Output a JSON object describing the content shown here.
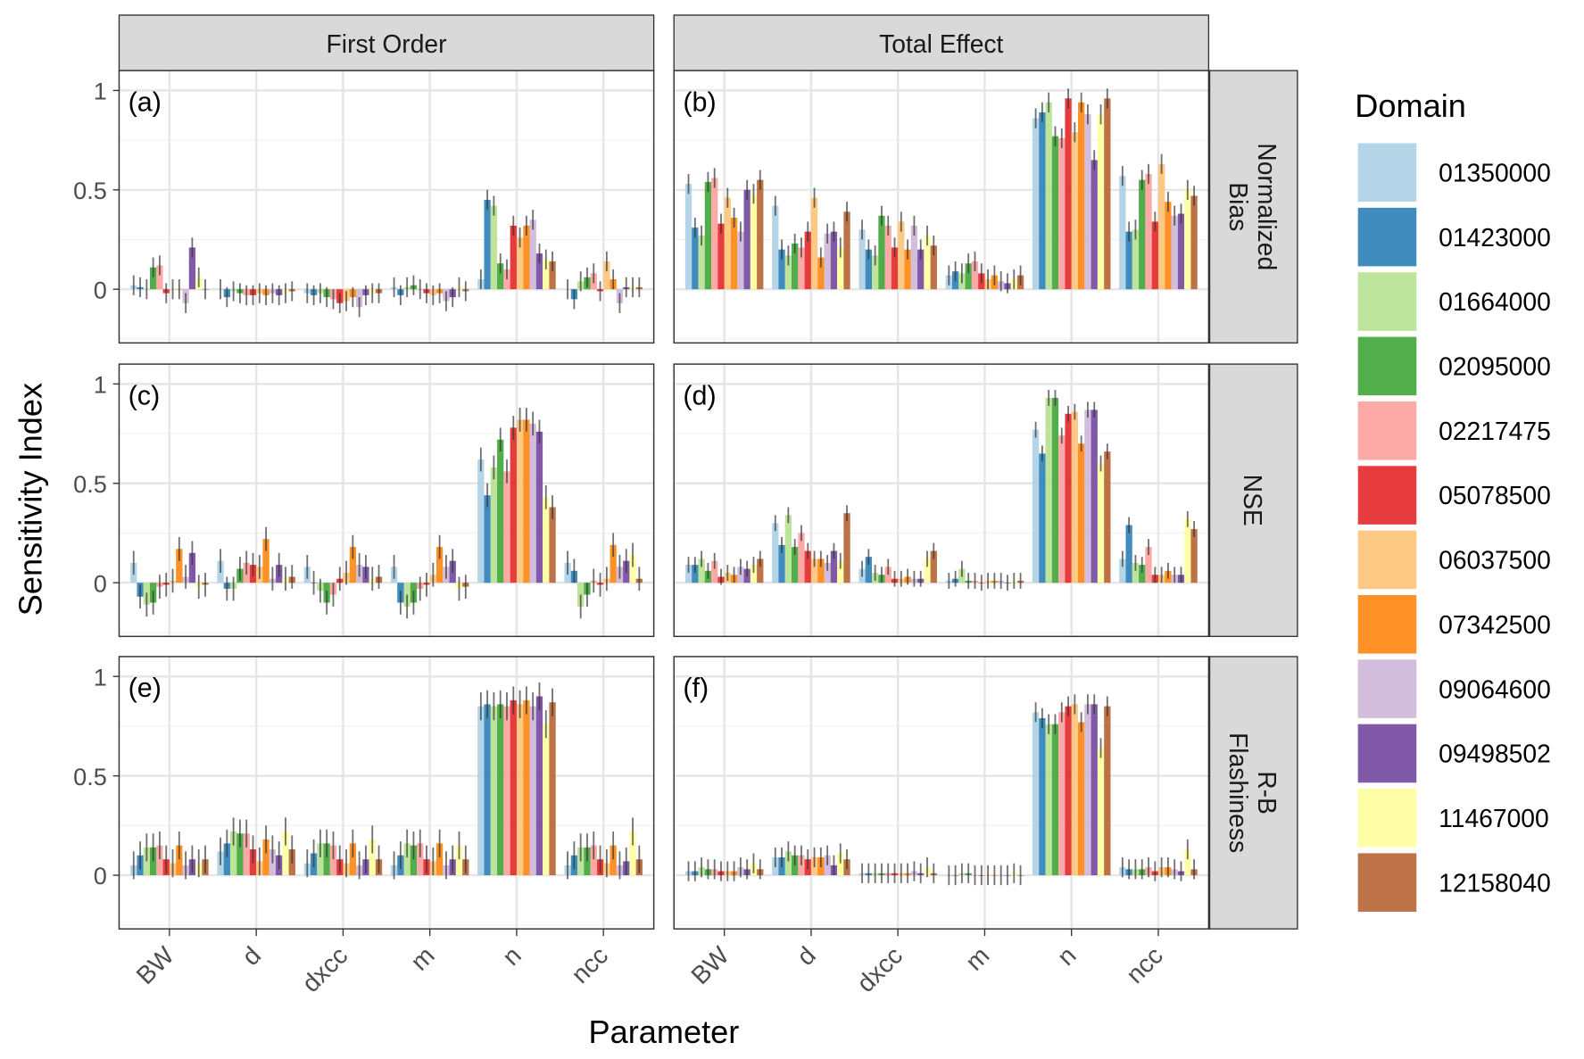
{
  "chart_data": {
    "type": "bar",
    "xlabel": "Parameter",
    "ylabel": "Sensitivity Index",
    "ylim": [
      -0.27,
      1.1
    ],
    "yticks": [
      0,
      0.5,
      1
    ],
    "ytick_labels": [
      "0",
      "0.5",
      "1"
    ],
    "grid": true,
    "legend": {
      "title": "Domain",
      "placement": "right"
    },
    "categories": [
      "BW",
      "d",
      "dxcc",
      "m",
      "n",
      "ncc"
    ],
    "column_strips": [
      "First Order",
      "Total Effect"
    ],
    "row_strips": [
      "Normalized\nBias",
      "NSE",
      "R-B\nFlashiness"
    ],
    "domains": [
      "01350000",
      "01423000",
      "01664000",
      "02095000",
      "02217475",
      "05078500",
      "06037500",
      "07342500",
      "09064600",
      "09498502",
      "11467000",
      "12158040"
    ],
    "colors": [
      "#A6CEE3",
      "#1F78B4",
      "#B2DF8A",
      "#33A02C",
      "#FB9A99",
      "#E31A1C",
      "#FDBF6F",
      "#FF7F00",
      "#CAB2D6",
      "#6A3D9A",
      "#FFFF99",
      "#B15928"
    ],
    "panels": [
      {
        "label": "(a)",
        "row": 0,
        "col": 0,
        "error_halfwidth": 0.05,
        "values": [
          [
            0.02,
            0.01,
            0.0,
            0.11,
            0.12,
            -0.02,
            0.0,
            0.0,
            -0.07,
            0.21,
            0.06,
            0.0
          ],
          [
            0.0,
            -0.04,
            -0.01,
            -0.02,
            -0.03,
            -0.03,
            -0.02,
            -0.03,
            -0.02,
            -0.03,
            -0.02,
            -0.01
          ],
          [
            -0.02,
            -0.03,
            -0.02,
            -0.04,
            -0.05,
            -0.07,
            -0.06,
            -0.04,
            -0.09,
            -0.03,
            -0.02,
            -0.02
          ],
          [
            0.01,
            -0.03,
            0.01,
            0.02,
            0.0,
            -0.02,
            -0.03,
            -0.02,
            -0.06,
            -0.04,
            0.01,
            -0.01
          ],
          [
            0.05,
            0.45,
            0.42,
            0.13,
            0.1,
            0.32,
            0.26,
            0.32,
            0.35,
            0.18,
            0.15,
            0.14
          ],
          [
            0.0,
            -0.05,
            0.04,
            0.06,
            0.08,
            -0.01,
            0.14,
            0.05,
            -0.07,
            0.01,
            0.01,
            0.01
          ]
        ]
      },
      {
        "label": "(b)",
        "row": 0,
        "col": 1,
        "error_halfwidth": 0.05,
        "values": [
          [
            0.53,
            0.31,
            0.27,
            0.54,
            0.56,
            0.33,
            0.46,
            0.36,
            0.29,
            0.5,
            0.48,
            0.55
          ],
          [
            0.42,
            0.2,
            0.17,
            0.23,
            0.21,
            0.29,
            0.46,
            0.16,
            0.28,
            0.29,
            0.21,
            0.39
          ],
          [
            0.3,
            0.2,
            0.17,
            0.37,
            0.32,
            0.21,
            0.34,
            0.2,
            0.32,
            0.2,
            0.27,
            0.22
          ],
          [
            0.07,
            0.09,
            0.08,
            0.13,
            0.14,
            0.08,
            0.05,
            0.07,
            0.04,
            0.03,
            0.05,
            0.07
          ],
          [
            0.86,
            0.89,
            0.94,
            0.77,
            0.76,
            0.96,
            0.79,
            0.94,
            0.88,
            0.65,
            0.88,
            0.96
          ],
          [
            0.57,
            0.29,
            0.3,
            0.55,
            0.58,
            0.34,
            0.63,
            0.44,
            0.37,
            0.38,
            0.5,
            0.47
          ]
        ]
      },
      {
        "label": "(c)",
        "row": 1,
        "col": 0,
        "error_halfwidth": 0.06,
        "values": [
          [
            0.1,
            -0.07,
            -0.11,
            -0.1,
            -0.02,
            -0.01,
            0.01,
            0.17,
            0.03,
            0.15,
            -0.02,
            -0.01
          ],
          [
            0.11,
            -0.03,
            -0.03,
            0.07,
            0.1,
            0.09,
            0.08,
            0.22,
            0.02,
            0.09,
            0.02,
            0.03
          ],
          [
            0.08,
            0.0,
            -0.04,
            -0.1,
            -0.06,
            0.02,
            0.05,
            0.18,
            0.09,
            0.08,
            0.02,
            0.03
          ],
          [
            0.08,
            -0.1,
            -0.12,
            -0.1,
            -0.03,
            -0.01,
            0.04,
            0.18,
            0.08,
            0.11,
            -0.03,
            -0.02
          ],
          [
            0.62,
            0.44,
            0.58,
            0.72,
            0.56,
            0.78,
            0.82,
            0.82,
            0.8,
            0.76,
            0.43,
            0.38
          ],
          [
            0.1,
            0.06,
            -0.12,
            -0.06,
            0.01,
            -0.01,
            0.02,
            0.19,
            0.08,
            0.11,
            0.14,
            0.02
          ]
        ]
      },
      {
        "label": "(d)",
        "row": 1,
        "col": 1,
        "error_halfwidth": 0.04,
        "values": [
          [
            0.09,
            0.09,
            0.12,
            0.06,
            0.11,
            0.03,
            0.05,
            0.04,
            0.08,
            0.07,
            0.09,
            0.12
          ],
          [
            0.3,
            0.19,
            0.34,
            0.18,
            0.25,
            0.16,
            0.12,
            0.12,
            0.1,
            0.16,
            0.11,
            0.35
          ],
          [
            0.07,
            0.13,
            0.05,
            0.04,
            0.08,
            0.02,
            0.02,
            0.03,
            0.02,
            0.02,
            0.12,
            0.16
          ],
          [
            0.01,
            0.02,
            0.07,
            0.01,
            0.01,
            0.0,
            0.01,
            0.01,
            0.01,
            0.0,
            0.01,
            0.01
          ],
          [
            0.77,
            0.65,
            0.93,
            0.93,
            0.74,
            0.85,
            0.86,
            0.7,
            0.87,
            0.87,
            0.6,
            0.66
          ],
          [
            0.12,
            0.29,
            0.1,
            0.09,
            0.18,
            0.04,
            0.04,
            0.06,
            0.04,
            0.04,
            0.32,
            0.27
          ]
        ]
      },
      {
        "label": "(e)",
        "row": 2,
        "col": 0,
        "error_halfwidth": 0.07,
        "values": [
          [
            0.05,
            0.1,
            0.14,
            0.14,
            0.15,
            0.08,
            0.06,
            0.15,
            0.05,
            0.08,
            0.06,
            0.08
          ],
          [
            0.12,
            0.16,
            0.22,
            0.21,
            0.21,
            0.13,
            0.07,
            0.18,
            0.13,
            0.1,
            0.22,
            0.13
          ],
          [
            0.06,
            0.11,
            0.16,
            0.16,
            0.15,
            0.08,
            0.06,
            0.16,
            0.05,
            0.08,
            0.18,
            0.08
          ],
          [
            0.05,
            0.1,
            0.16,
            0.15,
            0.16,
            0.08,
            0.07,
            0.16,
            0.05,
            0.08,
            0.15,
            0.08
          ],
          [
            0.85,
            0.86,
            0.85,
            0.86,
            0.85,
            0.88,
            0.86,
            0.88,
            0.85,
            0.9,
            0.76,
            0.87
          ],
          [
            0.05,
            0.1,
            0.14,
            0.14,
            0.15,
            0.08,
            0.06,
            0.15,
            0.05,
            0.07,
            0.22,
            0.08
          ]
        ]
      },
      {
        "label": "(f)",
        "row": 2,
        "col": 1,
        "error_halfwidth": 0.05,
        "values": [
          [
            0.02,
            0.02,
            0.04,
            0.03,
            0.03,
            0.02,
            0.02,
            0.02,
            0.04,
            0.03,
            0.06,
            0.03
          ],
          [
            0.09,
            0.09,
            0.12,
            0.1,
            0.1,
            0.08,
            0.09,
            0.09,
            0.1,
            0.05,
            0.11,
            0.08
          ],
          [
            0.01,
            0.01,
            0.01,
            0.01,
            0.01,
            0.01,
            0.01,
            0.01,
            0.02,
            0.01,
            0.04,
            0.01
          ],
          [
            0.0,
            0.0,
            0.01,
            0.01,
            0.0,
            0.0,
            0.0,
            0.0,
            0.0,
            0.0,
            0.01,
            0.0
          ],
          [
            0.82,
            0.79,
            0.76,
            0.76,
            0.82,
            0.85,
            0.86,
            0.77,
            0.86,
            0.86,
            0.64,
            0.85
          ],
          [
            0.04,
            0.03,
            0.03,
            0.03,
            0.04,
            0.02,
            0.04,
            0.04,
            0.03,
            0.02,
            0.13,
            0.03
          ]
        ]
      }
    ]
  }
}
